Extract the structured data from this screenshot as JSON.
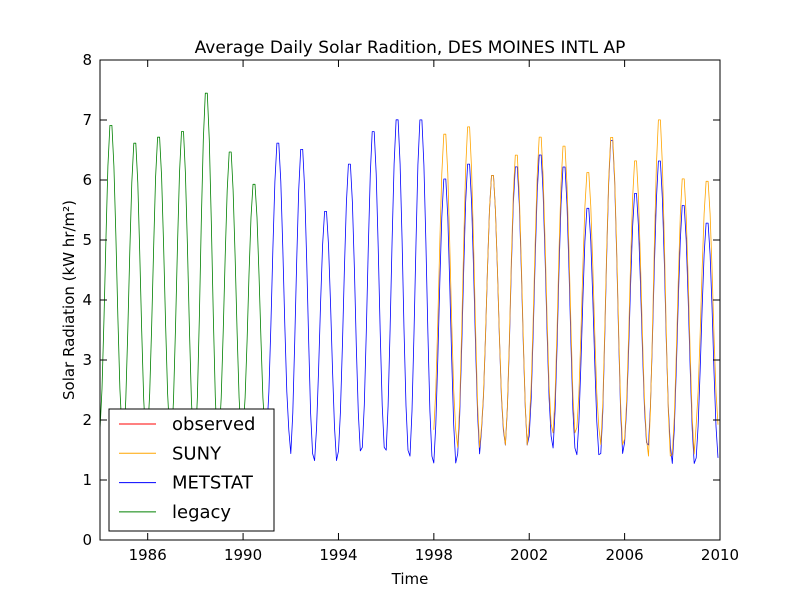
{
  "chart_data": {
    "type": "line",
    "title": "Average Daily Solar Radition, DES MOINES INTL AP",
    "xlabel": "Time",
    "ylabel": "Solar Radiation (kW hr/m²)",
    "xlim": [
      1984.0,
      2010.0
    ],
    "ylim": [
      0,
      8
    ],
    "x_ticks": [
      "1986",
      "1990",
      "1994",
      "1998",
      "2002",
      "2006",
      "2010"
    ],
    "y_ticks": [
      "0",
      "1",
      "2",
      "3",
      "4",
      "5",
      "6",
      "7",
      "8"
    ],
    "grid": false,
    "legend_position": "lower-left",
    "series": [
      {
        "name": "observed",
        "color": "#ff0000",
        "monthly": []
      },
      {
        "name": "SUNY",
        "color": "#ffa500",
        "start": "1998-01",
        "peaks": [
          6.85,
          6.98,
          6.15,
          6.5,
          6.8,
          6.65,
          6.2,
          6.8,
          6.4,
          7.1,
          6.1,
          6.05
        ],
        "troughs": [
          1.75,
          1.45,
          1.8,
          1.5,
          1.85,
          1.7,
          1.8,
          1.5,
          1.6,
          1.3,
          1.35,
          1.85
        ]
      },
      {
        "name": "METSTAT",
        "color": "#0000ff",
        "start": "1991-01",
        "peaks": [
          6.7,
          6.6,
          5.55,
          6.35,
          6.9,
          7.1,
          7.1,
          6.1,
          6.35,
          6.15,
          6.3,
          6.5,
          6.3,
          5.6,
          6.75,
          5.85,
          6.4,
          5.65,
          5.35
        ],
        "troughs": [
          1.75,
          1.35,
          1.25,
          1.4,
          1.45,
          1.4,
          1.3,
          1.2,
          1.35,
          1.75,
          1.5,
          1.65,
          1.45,
          1.35,
          1.35,
          1.55,
          1.5,
          1.2,
          1.3
        ]
      },
      {
        "name": "legacy",
        "color": "#008000",
        "start": "1984-01",
        "peaks": [
          7.0,
          6.7,
          6.8,
          6.9,
          7.55,
          6.55,
          6.0
        ],
        "troughs": [
          1.75,
          1.6,
          1.7,
          1.55,
          1.5,
          1.65,
          1.75
        ]
      }
    ]
  }
}
